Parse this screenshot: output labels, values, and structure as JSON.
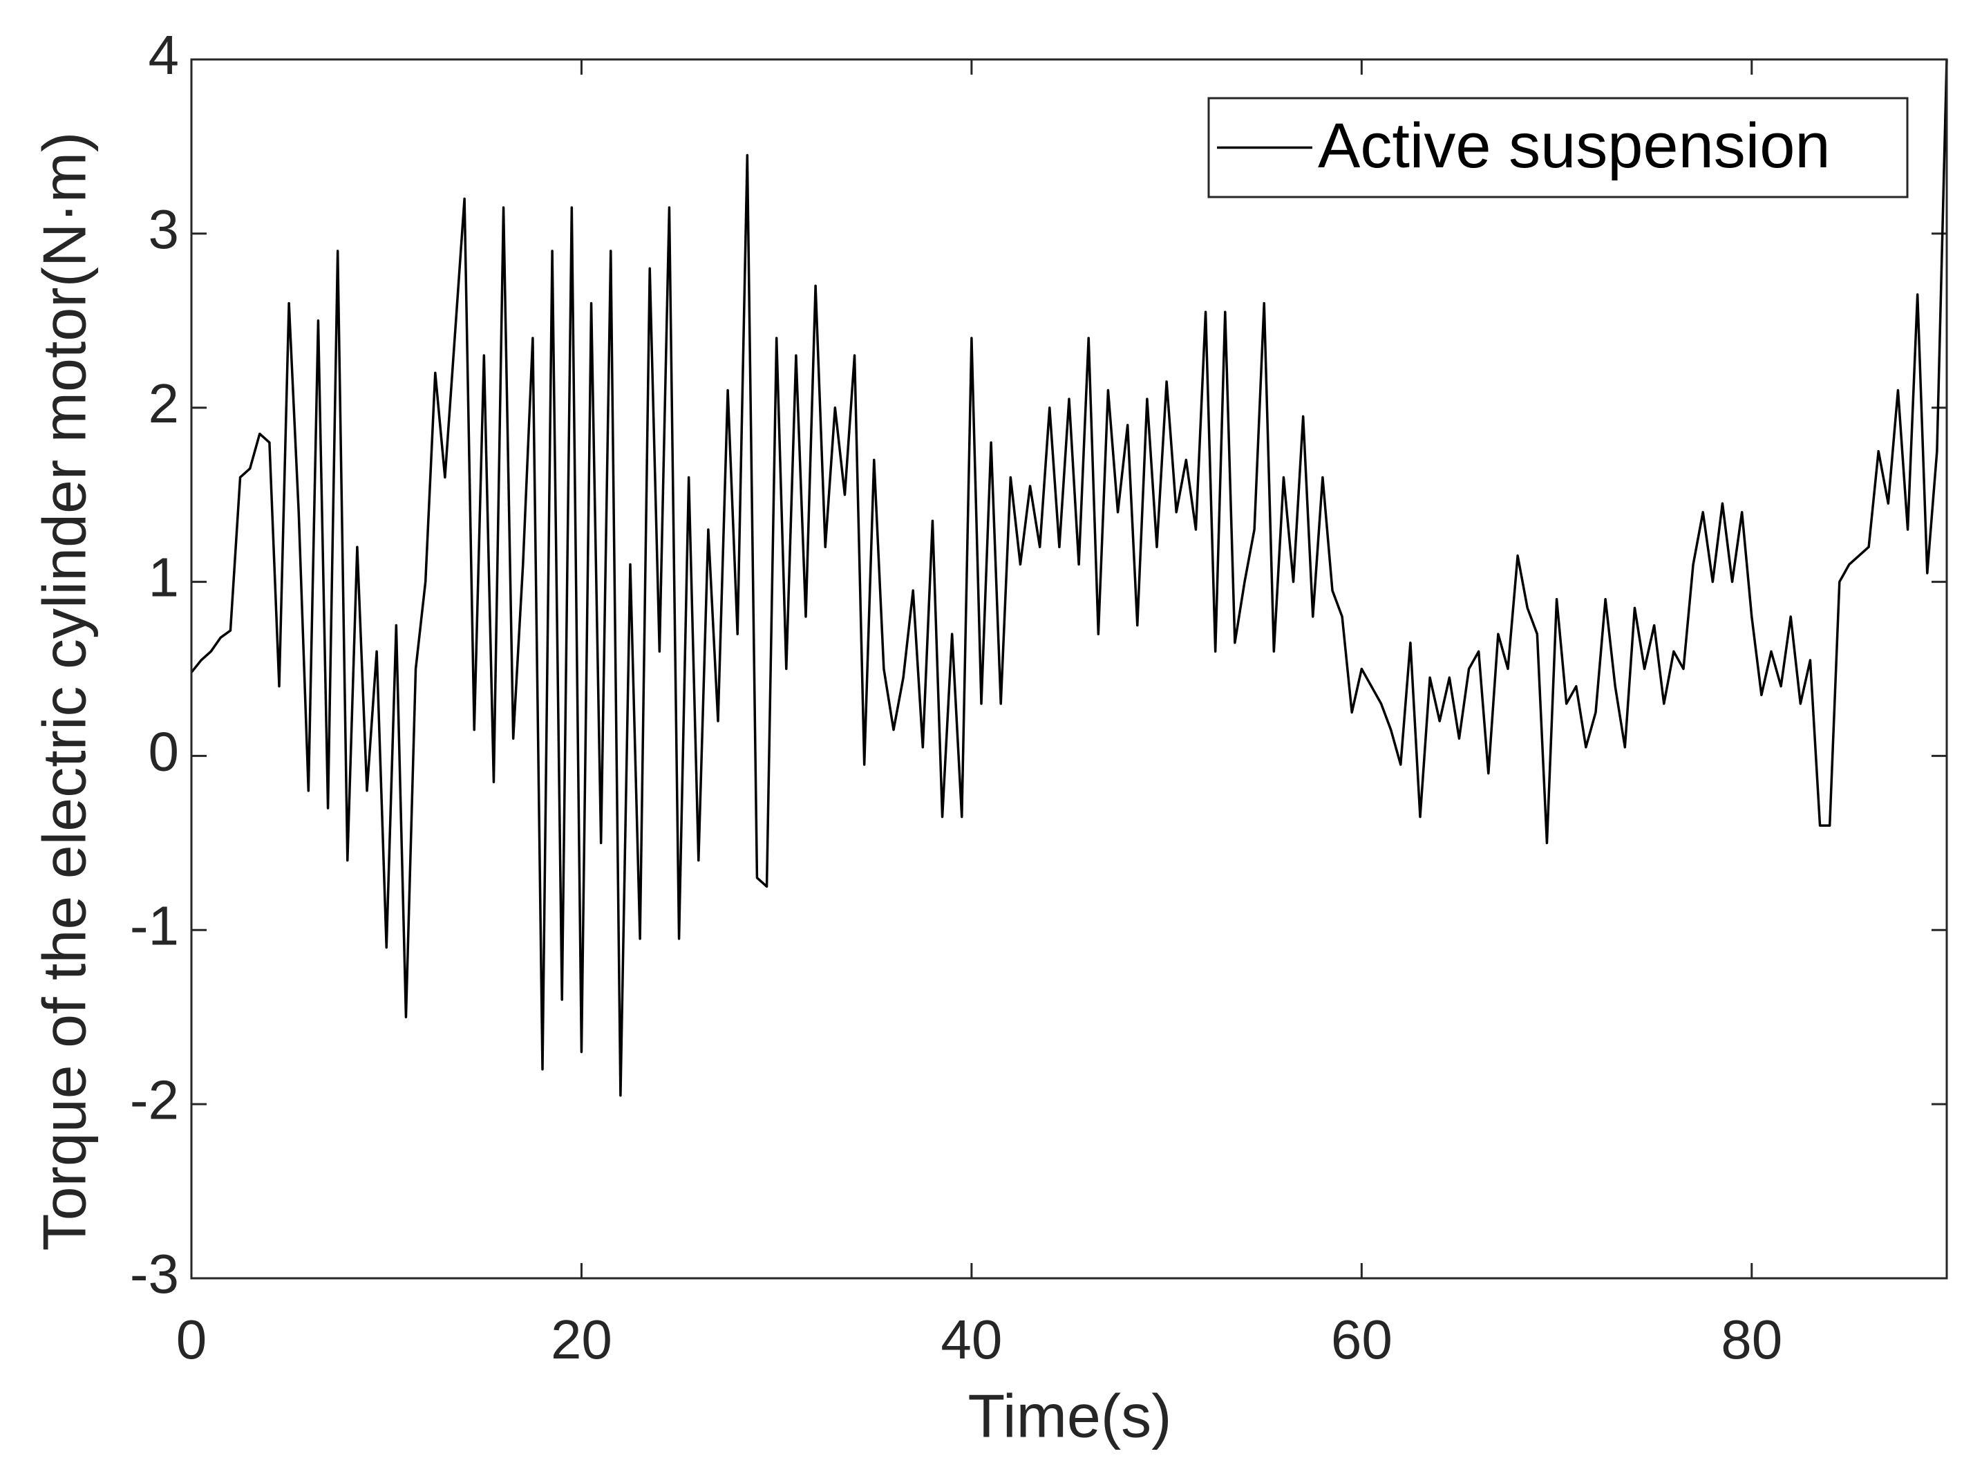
{
  "chart_data": {
    "type": "line",
    "x_label": "Time(s)",
    "y_label": "Torque of the electric cylinder motor(N·m)",
    "xlim": [
      0,
      90
    ],
    "xticks": [
      0,
      20,
      40,
      60,
      80
    ],
    "ylim": [
      -3,
      4
    ],
    "yticks": [
      -3,
      -2,
      -1,
      0,
      1,
      2,
      3,
      4
    ],
    "legend": "upper right",
    "series": [
      {
        "name": "Active suspension",
        "color": "#000000",
        "x": [
          0,
          0.5,
          1,
          1.5,
          2,
          2.5,
          3,
          3.5,
          4,
          4.5,
          5,
          5.5,
          6,
          6.5,
          7,
          7.5,
          8,
          8.5,
          9,
          9.5,
          10,
          10.5,
          11,
          11.5,
          12,
          12.5,
          13,
          13.5,
          14,
          14.5,
          15,
          15.5,
          16,
          16.5,
          17,
          17.5,
          18,
          18.5,
          19,
          19.5,
          20,
          20.5,
          21,
          21.5,
          22,
          22.5,
          23,
          23.5,
          24,
          24.5,
          25,
          25.5,
          26,
          26.5,
          27,
          27.5,
          28,
          28.5,
          29,
          29.5,
          30,
          30.5,
          31,
          31.5,
          32,
          32.5,
          33,
          33.5,
          34,
          34.5,
          35,
          35.5,
          36,
          36.5,
          37,
          37.5,
          38,
          38.5,
          39,
          39.5,
          40,
          40.5,
          41,
          41.5,
          42,
          42.5,
          43,
          43.5,
          44,
          44.5,
          45,
          45.5,
          46,
          46.5,
          47,
          47.5,
          48,
          48.5,
          49,
          49.5,
          50,
          50.5,
          51,
          51.5,
          52,
          52.5,
          53,
          53.5,
          54,
          54.5,
          55,
          55.5,
          56,
          56.5,
          57,
          57.5,
          58,
          58.5,
          59,
          59.5,
          60,
          60.5,
          61,
          61.5,
          62,
          62.5,
          63,
          63.5,
          64,
          64.5,
          65,
          65.5,
          66,
          66.5,
          67,
          67.5,
          68,
          68.5,
          69,
          69.5,
          70,
          70.5,
          71,
          71.5,
          72,
          72.5,
          73,
          73.5,
          74,
          74.5,
          75,
          75.5,
          76,
          76.5,
          77,
          77.5,
          78,
          78.5,
          79,
          79.5,
          80,
          80.5,
          81,
          81.5,
          82,
          82.5,
          83,
          83.5,
          84,
          84.5,
          85,
          85.5,
          86,
          86.5,
          87,
          87.5,
          88,
          88.5,
          89,
          89.5,
          90
        ],
        "values": [
          0.48,
          0.55,
          0.6,
          0.68,
          0.72,
          1.6,
          1.65,
          1.85,
          1.8,
          0.4,
          2.6,
          1.4,
          -0.2,
          2.5,
          -0.3,
          2.9,
          -0.6,
          1.2,
          -0.2,
          0.6,
          -1.1,
          0.75,
          -1.5,
          0.5,
          1.0,
          2.2,
          1.6,
          2.4,
          3.2,
          0.15,
          2.3,
          -0.15,
          3.15,
          0.1,
          1.1,
          2.4,
          -1.8,
          2.9,
          -1.4,
          3.15,
          -1.7,
          2.6,
          -0.5,
          2.9,
          -1.95,
          1.1,
          -1.05,
          2.8,
          0.6,
          3.15,
          -1.05,
          1.6,
          -0.6,
          1.3,
          0.2,
          2.1,
          0.7,
          3.45,
          -0.7,
          -0.75,
          2.4,
          0.5,
          2.3,
          0.8,
          2.7,
          1.2,
          2.0,
          1.5,
          2.3,
          -0.05,
          1.7,
          0.5,
          0.15,
          0.45,
          0.95,
          0.05,
          1.35,
          -0.35,
          0.7,
          -0.35,
          2.4,
          0.3,
          1.8,
          0.3,
          1.6,
          1.1,
          1.55,
          1.2,
          2.0,
          1.2,
          2.05,
          1.1,
          2.4,
          0.7,
          2.1,
          1.4,
          1.9,
          0.75,
          2.05,
          1.2,
          2.15,
          1.4,
          1.7,
          1.3,
          2.55,
          0.6,
          2.55,
          0.65,
          1.0,
          1.3,
          2.6,
          0.6,
          1.6,
          1.0,
          1.95,
          0.8,
          1.6,
          0.95,
          0.8,
          0.25,
          0.5,
          0.4,
          0.3,
          0.15,
          -0.05,
          0.65,
          -0.35,
          0.45,
          0.2,
          0.45,
          0.1,
          0.5,
          0.6,
          -0.1,
          0.7,
          0.5,
          1.15,
          0.85,
          0.7,
          -0.5,
          0.9,
          0.3,
          0.4,
          0.05,
          0.25,
          0.9,
          0.4,
          0.05,
          0.85,
          0.5,
          0.75,
          0.3,
          0.6,
          0.5,
          1.1,
          1.4,
          1.0,
          1.45,
          1.0,
          1.4,
          0.8,
          0.35,
          0.6,
          0.4,
          0.8,
          0.3,
          0.55,
          -0.4,
          -0.4,
          1.0,
          1.1,
          1.15,
          1.2,
          1.75,
          1.45,
          2.1,
          1.3,
          2.65,
          1.05,
          1.75,
          4.0
        ]
      }
    ]
  }
}
